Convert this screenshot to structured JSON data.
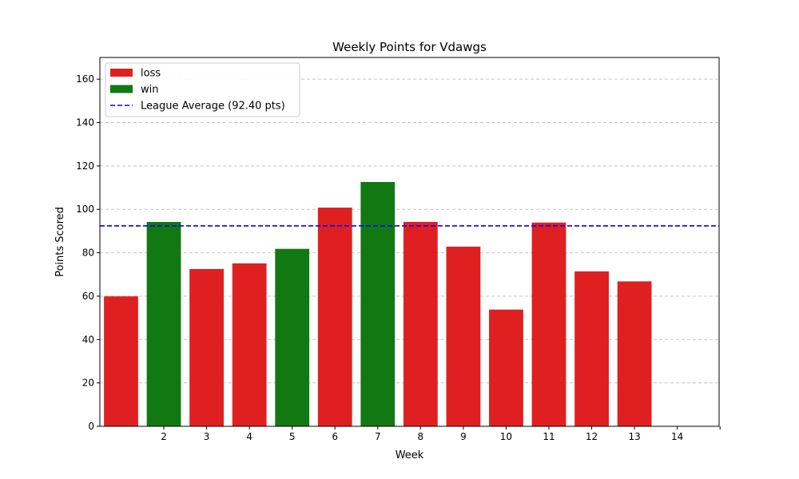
{
  "chart_data": {
    "type": "bar",
    "title": "Weekly Points for Vdawgs",
    "xlabel": "Week",
    "ylabel": "Points Scored",
    "ylim": [
      0,
      170
    ],
    "yticks": [
      0,
      20,
      40,
      60,
      80,
      100,
      120,
      140,
      160
    ],
    "xtick_labels": [
      "",
      "2",
      "3",
      "4",
      "5",
      "6",
      "7",
      "8",
      "9",
      "10",
      "11",
      "12",
      "13",
      "14"
    ],
    "grid": "y-dashed",
    "legend_position": "top-left",
    "bars": [
      {
        "week": 1,
        "value": 59.9,
        "result": "loss"
      },
      {
        "week": 2,
        "value": 94.2,
        "result": "win"
      },
      {
        "week": 3,
        "value": 72.5,
        "result": "loss"
      },
      {
        "week": 4,
        "value": 75.1,
        "result": "loss"
      },
      {
        "week": 5,
        "value": 81.8,
        "result": "win"
      },
      {
        "week": 6,
        "value": 100.8,
        "result": "loss"
      },
      {
        "week": 7,
        "value": 112.6,
        "result": "win"
      },
      {
        "week": 8,
        "value": 94.2,
        "result": "loss"
      },
      {
        "week": 9,
        "value": 82.8,
        "result": "loss"
      },
      {
        "week": 10,
        "value": 53.8,
        "result": "loss"
      },
      {
        "week": 11,
        "value": 93.9,
        "result": "loss"
      },
      {
        "week": 12,
        "value": 71.4,
        "result": "loss"
      },
      {
        "week": 13,
        "value": 66.8,
        "result": "loss"
      }
    ],
    "reference_line": {
      "value": 92.4,
      "label": "League Average (92.40 pts)",
      "color": "#0000ff",
      "style": "dashed"
    },
    "legend": [
      {
        "label": "loss",
        "kind": "bar",
        "color": "#e02020"
      },
      {
        "label": "win",
        "kind": "bar",
        "color": "#127812"
      },
      {
        "label": "League Average (92.40 pts)",
        "kind": "line",
        "color": "#0000ff"
      }
    ],
    "colors": {
      "loss": "#e02020",
      "win": "#127812"
    }
  }
}
